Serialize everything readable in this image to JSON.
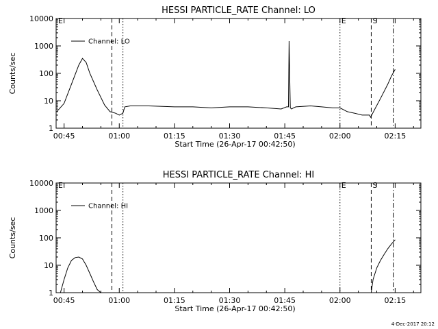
{
  "footer": {
    "timestamp": "4-Dec-2017 20:12"
  },
  "chart_data": [
    {
      "type": "line",
      "title": "HESSI PARTICLE_RATE Channel: LO",
      "xlabel": "Start Time (26-Apr-17 00:42:50)",
      "ylabel": "Counts/sec",
      "log_y": true,
      "xlim": [
        "00:42:50",
        "02:22:00"
      ],
      "ylim": [
        1,
        10000
      ],
      "x_ticks": [
        "00:45",
        "01:00",
        "01:15",
        "01:30",
        "01:45",
        "02:00",
        "02:15"
      ],
      "y_ticks": [
        "1",
        "10",
        "100",
        "1000",
        "10000"
      ],
      "legend": {
        "label": "Channel: LO",
        "position": "top-left"
      },
      "markers": [
        {
          "label": "E",
          "time": "00:43:00",
          "style": "none"
        },
        {
          "label": "",
          "time": "00:58:00",
          "style": "dashed"
        },
        {
          "label": "",
          "time": "01:01:00",
          "style": "dotted"
        },
        {
          "label": "E",
          "time": "02:00:00",
          "style": "dotted"
        },
        {
          "label": "S",
          "time": "02:08:30",
          "style": "dashed"
        },
        {
          "label": "",
          "time": "02:14:30",
          "style": "dashdot"
        }
      ],
      "series": [
        {
          "x": [
            "00:43:00",
            "00:45:00",
            "00:47:00",
            "00:49:00",
            "00:50:00",
            "00:51:00",
            "00:52:00",
            "00:54:00",
            "00:56:00",
            "00:57:30",
            "00:59:00",
            "01:00:00",
            "01:01:00",
            "01:01:30",
            "01:03:00",
            "01:08:00",
            "01:15:00",
            "01:20:00",
            "01:25:00",
            "01:30:00",
            "01:35:00",
            "01:40:00",
            "01:44:00",
            "01:45:30",
            "01:46:00",
            "01:46:10",
            "01:46:30",
            "01:46:50",
            "01:47:20",
            "01:48:00",
            "01:52:00",
            "01:55:00",
            "01:58:00",
            "02:00:00",
            "02:02:00",
            "02:04:00",
            "02:06:00",
            "02:07:00",
            "02:08:00",
            "02:08:20",
            "02:09:30",
            "02:11:00",
            "02:13:00",
            "02:14:00",
            "02:15:00"
          ],
          "y": [
            4,
            8,
            40,
            200,
            350,
            250,
            100,
            25,
            7,
            4,
            3.5,
            3,
            3.5,
            6,
            6.5,
            6.5,
            6,
            6,
            5.5,
            6,
            6,
            5.5,
            5,
            6,
            6,
            1500,
            5.5,
            5,
            5.5,
            6,
            6.5,
            6,
            5.5,
            5.5,
            4,
            3.5,
            3,
            3,
            3,
            2.5,
            5,
            12,
            40,
            80,
            140
          ]
        }
      ]
    },
    {
      "type": "line",
      "title": "HESSI PARTICLE_RATE Channel: HI",
      "xlabel": "Start Time (26-Apr-17 00:42:50)",
      "ylabel": "Counts/sec",
      "log_y": true,
      "xlim": [
        "00:42:50",
        "02:22:00"
      ],
      "ylim": [
        1,
        10000
      ],
      "x_ticks": [
        "00:45",
        "01:00",
        "01:15",
        "01:30",
        "01:45",
        "02:00",
        "02:15"
      ],
      "y_ticks": [
        "1",
        "10",
        "100",
        "1000",
        "10000"
      ],
      "legend": {
        "label": "Channel: HI",
        "position": "top-left"
      },
      "markers": [
        {
          "label": "E",
          "time": "00:43:00",
          "style": "none"
        },
        {
          "label": "",
          "time": "00:58:00",
          "style": "dashed"
        },
        {
          "label": "",
          "time": "01:01:00",
          "style": "dotted"
        },
        {
          "label": "E",
          "time": "02:00:00",
          "style": "dotted"
        },
        {
          "label": "S",
          "time": "02:08:30",
          "style": "dashed"
        },
        {
          "label": "",
          "time": "02:14:30",
          "style": "dashdot"
        }
      ],
      "series": [
        {
          "x": [
            "00:44:00",
            "00:45:00",
            "00:46:00",
            "00:47:00",
            "00:48:00",
            "00:49:00",
            "00:50:00",
            "00:51:00",
            "00:52:00",
            "00:53:00",
            "00:54:00",
            "00:55:00",
            "02:08:30",
            "02:09:00",
            "02:10:00",
            "02:11:00",
            "02:12:00",
            "02:13:00",
            "02:14:00",
            "02:15:00"
          ],
          "y": [
            1,
            3,
            8,
            15,
            19,
            20,
            17,
            10,
            5,
            2.5,
            1.3,
            1,
            1,
            3,
            8,
            15,
            25,
            40,
            60,
            85
          ]
        }
      ]
    }
  ]
}
